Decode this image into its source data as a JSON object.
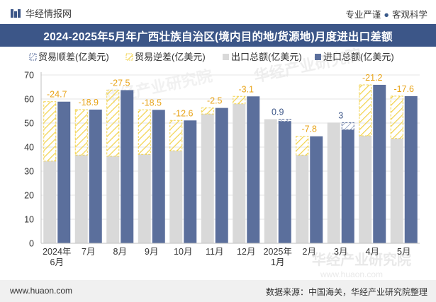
{
  "header": {
    "brand": "华经情报网",
    "tag1": "专业严谨",
    "separator": "●",
    "tag2": "客观科学"
  },
  "title": "2024-2025年5月年广西壮族自治区(境内目的地/货源地)月度进出口差额",
  "footer": {
    "url": "www.huaon.com",
    "source": "数据来源：中国海关，华经产业研究院整理"
  },
  "watermark": "华经产业研究院",
  "watermark_url": "www.huaon.com",
  "colors": {
    "export": "#d9d9d9",
    "import": "#5b6f9c",
    "deficit_stroke": "#f2d24a",
    "surplus_stroke": "#5b6f9c",
    "label_deficit": "#e8a317",
    "label_surplus": "#3c5688",
    "title_bg": "#3c5688"
  },
  "chart_data": {
    "type": "bar",
    "categories": [
      "2024年\n6月",
      "7月",
      "8月",
      "9月",
      "10月",
      "11月",
      "12月",
      "2025年\n1月",
      "2月",
      "3月",
      "4月",
      "5月"
    ],
    "series": [
      {
        "name": "出口总额(亿美元)",
        "values": [
          34.2,
          36.7,
          36.2,
          37.0,
          38.5,
          53.8,
          58.0,
          51.6,
          36.7,
          50.2,
          44.7,
          43.6
        ]
      },
      {
        "name": "进口总额(亿美元)",
        "values": [
          58.9,
          55.6,
          63.7,
          55.5,
          51.1,
          56.3,
          61.1,
          50.7,
          44.5,
          47.2,
          65.9,
          61.2
        ]
      }
    ],
    "balance": {
      "name_surplus": "贸易顺差(亿美元)",
      "name_deficit": "贸易逆差(亿美元)",
      "values": [
        -24.7,
        -18.9,
        -27.5,
        -18.5,
        -12.6,
        -2.5,
        -3.1,
        0.9,
        -7.8,
        3,
        -21.2,
        -17.6
      ],
      "labels": [
        "-24.7",
        "-18.9",
        "-27.5",
        "-18.5",
        "-12.6",
        "-2.5",
        "-3.1",
        "0.9",
        "-7.8",
        "3",
        "-21.2",
        "-17.6"
      ]
    },
    "ylim": [
      0,
      70
    ],
    "yticks": [
      "0",
      "10",
      "20",
      "30",
      "40",
      "50",
      "60",
      "70"
    ],
    "legend_position": "top-left"
  }
}
